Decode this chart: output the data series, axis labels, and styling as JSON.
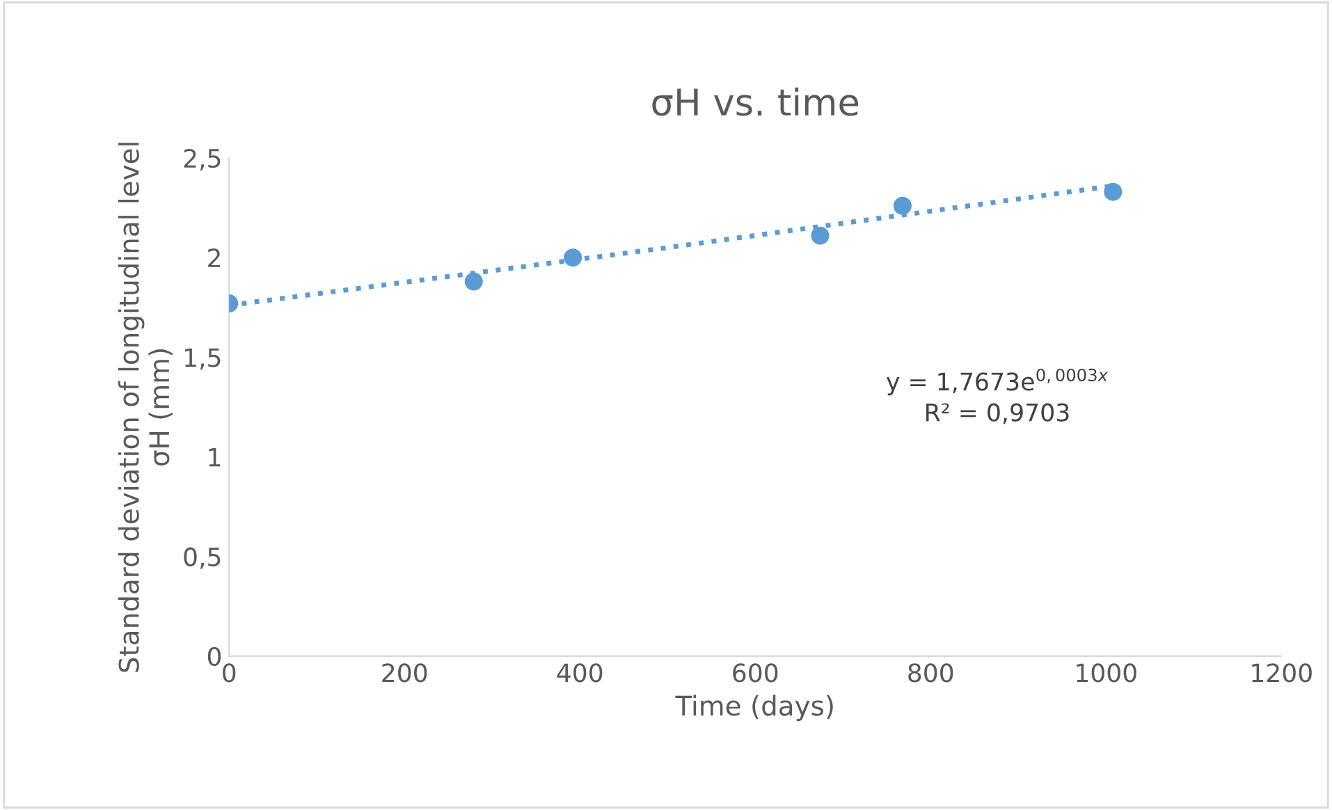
{
  "chart_data": {
    "type": "scatter",
    "title": "σH vs. time",
    "xlabel": "Time (days)",
    "ylabel": "Standard deviation of longitudinal level\nσH (mm)",
    "x": [
      0,
      279,
      392,
      674,
      768,
      1008
    ],
    "series": [
      {
        "color": "#5b9bd5",
        "values": [
          1.77,
          1.88,
          2.0,
          2.11,
          2.26,
          2.33
        ],
        "marker": "circle"
      },
      {
        "type": "line",
        "color": "#5b9bd5",
        "x": [
          0,
          500,
          1008
        ],
        "values": [
          1.76,
          2.05,
          2.36
        ],
        "line_style": "dotted",
        "marker": "none"
      }
    ],
    "xlim": [
      0,
      1200
    ],
    "xticks": [
      0,
      200,
      400,
      600,
      800,
      1000,
      1200
    ],
    "ylim": [
      0,
      2.5
    ],
    "yticks": [
      0,
      {
        "value": 0.5,
        "label": "0,5"
      },
      1,
      {
        "value": 1.5,
        "label": "1,5"
      },
      2,
      {
        "value": 2.5,
        "label": "2,5"
      }
    ],
    "grid": false,
    "legend": false,
    "annotations": [
      "y = 1,7673e$^{0,0003x}$",
      "R² = 0,9703"
    ]
  }
}
